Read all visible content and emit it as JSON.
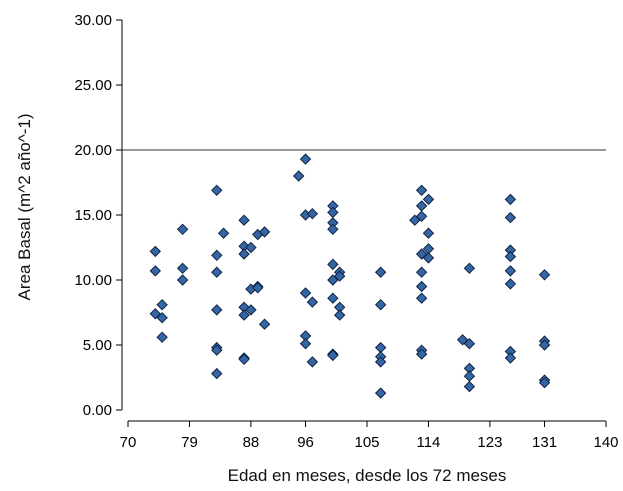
{
  "chart_data": {
    "type": "scatter",
    "title": "",
    "xlabel": "Edad en meses, desde los 72 meses",
    "ylabel": "Area Basal (m^2 año^-1)",
    "xlim": [
      70,
      140
    ],
    "ylim": [
      0,
      30
    ],
    "x_ticks": [
      {
        "value": 70,
        "label": "70"
      },
      {
        "value": 79,
        "label": "79"
      },
      {
        "value": 88,
        "label": "88"
      },
      {
        "value": 96,
        "label": "96"
      },
      {
        "value": 105,
        "label": "105"
      },
      {
        "value": 114,
        "label": "114"
      },
      {
        "value": 123,
        "label": "123"
      },
      {
        "value": 131,
        "label": "131"
      },
      {
        "value": 140,
        "label": "140"
      }
    ],
    "y_ticks": [
      {
        "value": 0,
        "label": "0.00"
      },
      {
        "value": 5,
        "label": "5.00"
      },
      {
        "value": 10,
        "label": "10.00"
      },
      {
        "value": 15,
        "label": "15.00"
      },
      {
        "value": 20,
        "label": "20.00"
      },
      {
        "value": 25,
        "label": "25.00"
      },
      {
        "value": 30,
        "label": "30.00"
      }
    ],
    "reference_line_y": 20,
    "grid": false,
    "legend": "none",
    "colors": {
      "marker_fill": "#3566a3",
      "marker_stroke": "#0f2447",
      "axis": "#000000",
      "reference_line": "#333333"
    },
    "series": [
      {
        "points": [
          {
            "x": 74,
            "y": 12.2
          },
          {
            "x": 74,
            "y": 10.7
          },
          {
            "x": 74,
            "y": 7.4
          },
          {
            "x": 75,
            "y": 8.1
          },
          {
            "x": 75,
            "y": 7.1
          },
          {
            "x": 75,
            "y": 5.6
          },
          {
            "x": 78,
            "y": 13.9
          },
          {
            "x": 78,
            "y": 10.9
          },
          {
            "x": 78,
            "y": 10.0
          },
          {
            "x": 83,
            "y": 16.9
          },
          {
            "x": 83,
            "y": 11.9
          },
          {
            "x": 83,
            "y": 10.6
          },
          {
            "x": 83,
            "y": 7.7
          },
          {
            "x": 83,
            "y": 4.8
          },
          {
            "x": 83,
            "y": 4.6
          },
          {
            "x": 83,
            "y": 2.8
          },
          {
            "x": 84,
            "y": 13.6
          },
          {
            "x": 87,
            "y": 14.6
          },
          {
            "x": 87,
            "y": 12.6
          },
          {
            "x": 87,
            "y": 12.0
          },
          {
            "x": 87,
            "y": 7.9
          },
          {
            "x": 87,
            "y": 7.3
          },
          {
            "x": 87,
            "y": 4.0
          },
          {
            "x": 87,
            "y": 3.9
          },
          {
            "x": 88,
            "y": 12.5
          },
          {
            "x": 88,
            "y": 9.3
          },
          {
            "x": 88,
            "y": 7.7
          },
          {
            "x": 89,
            "y": 13.5
          },
          {
            "x": 89,
            "y": 9.5
          },
          {
            "x": 89,
            "y": 9.4
          },
          {
            "x": 90,
            "y": 13.7
          },
          {
            "x": 90,
            "y": 6.6
          },
          {
            "x": 95,
            "y": 18.0
          },
          {
            "x": 96,
            "y": 19.3
          },
          {
            "x": 96,
            "y": 15.0
          },
          {
            "x": 96,
            "y": 9.0
          },
          {
            "x": 96,
            "y": 5.7
          },
          {
            "x": 96,
            "y": 5.1
          },
          {
            "x": 97,
            "y": 15.1
          },
          {
            "x": 97,
            "y": 8.3
          },
          {
            "x": 97,
            "y": 3.7
          },
          {
            "x": 100,
            "y": 15.7
          },
          {
            "x": 100,
            "y": 15.2
          },
          {
            "x": 100,
            "y": 14.4
          },
          {
            "x": 100,
            "y": 13.9
          },
          {
            "x": 100,
            "y": 11.2
          },
          {
            "x": 100,
            "y": 10.0
          },
          {
            "x": 100,
            "y": 8.6
          },
          {
            "x": 100,
            "y": 4.3
          },
          {
            "x": 100,
            "y": 4.2
          },
          {
            "x": 101,
            "y": 10.6
          },
          {
            "x": 101,
            "y": 10.3
          },
          {
            "x": 101,
            "y": 7.9
          },
          {
            "x": 101,
            "y": 7.3
          },
          {
            "x": 107,
            "y": 10.6
          },
          {
            "x": 107,
            "y": 8.1
          },
          {
            "x": 107,
            "y": 4.8
          },
          {
            "x": 107,
            "y": 4.1
          },
          {
            "x": 107,
            "y": 3.7
          },
          {
            "x": 107,
            "y": 1.3
          },
          {
            "x": 112,
            "y": 14.6
          },
          {
            "x": 113,
            "y": 16.9
          },
          {
            "x": 113,
            "y": 15.7
          },
          {
            "x": 113,
            "y": 14.9
          },
          {
            "x": 113,
            "y": 12.0
          },
          {
            "x": 113,
            "y": 10.6
          },
          {
            "x": 113,
            "y": 9.5
          },
          {
            "x": 113,
            "y": 8.6
          },
          {
            "x": 113,
            "y": 4.6
          },
          {
            "x": 113,
            "y": 4.3
          },
          {
            "x": 114,
            "y": 16.2
          },
          {
            "x": 114,
            "y": 13.6
          },
          {
            "x": 114,
            "y": 12.4
          },
          {
            "x": 114,
            "y": 11.7
          },
          {
            "x": 119,
            "y": 5.4
          },
          {
            "x": 120,
            "y": 10.9
          },
          {
            "x": 120,
            "y": 5.1
          },
          {
            "x": 120,
            "y": 3.2
          },
          {
            "x": 120,
            "y": 2.6
          },
          {
            "x": 120,
            "y": 1.8
          },
          {
            "x": 126,
            "y": 16.2
          },
          {
            "x": 126,
            "y": 14.8
          },
          {
            "x": 126,
            "y": 12.3
          },
          {
            "x": 126,
            "y": 11.8
          },
          {
            "x": 126,
            "y": 10.7
          },
          {
            "x": 126,
            "y": 9.7
          },
          {
            "x": 126,
            "y": 4.5
          },
          {
            "x": 126,
            "y": 4.0
          },
          {
            "x": 131,
            "y": 10.4
          },
          {
            "x": 131,
            "y": 5.3
          },
          {
            "x": 131,
            "y": 5.0
          },
          {
            "x": 131,
            "y": 2.3
          },
          {
            "x": 131,
            "y": 2.1
          }
        ]
      }
    ]
  }
}
